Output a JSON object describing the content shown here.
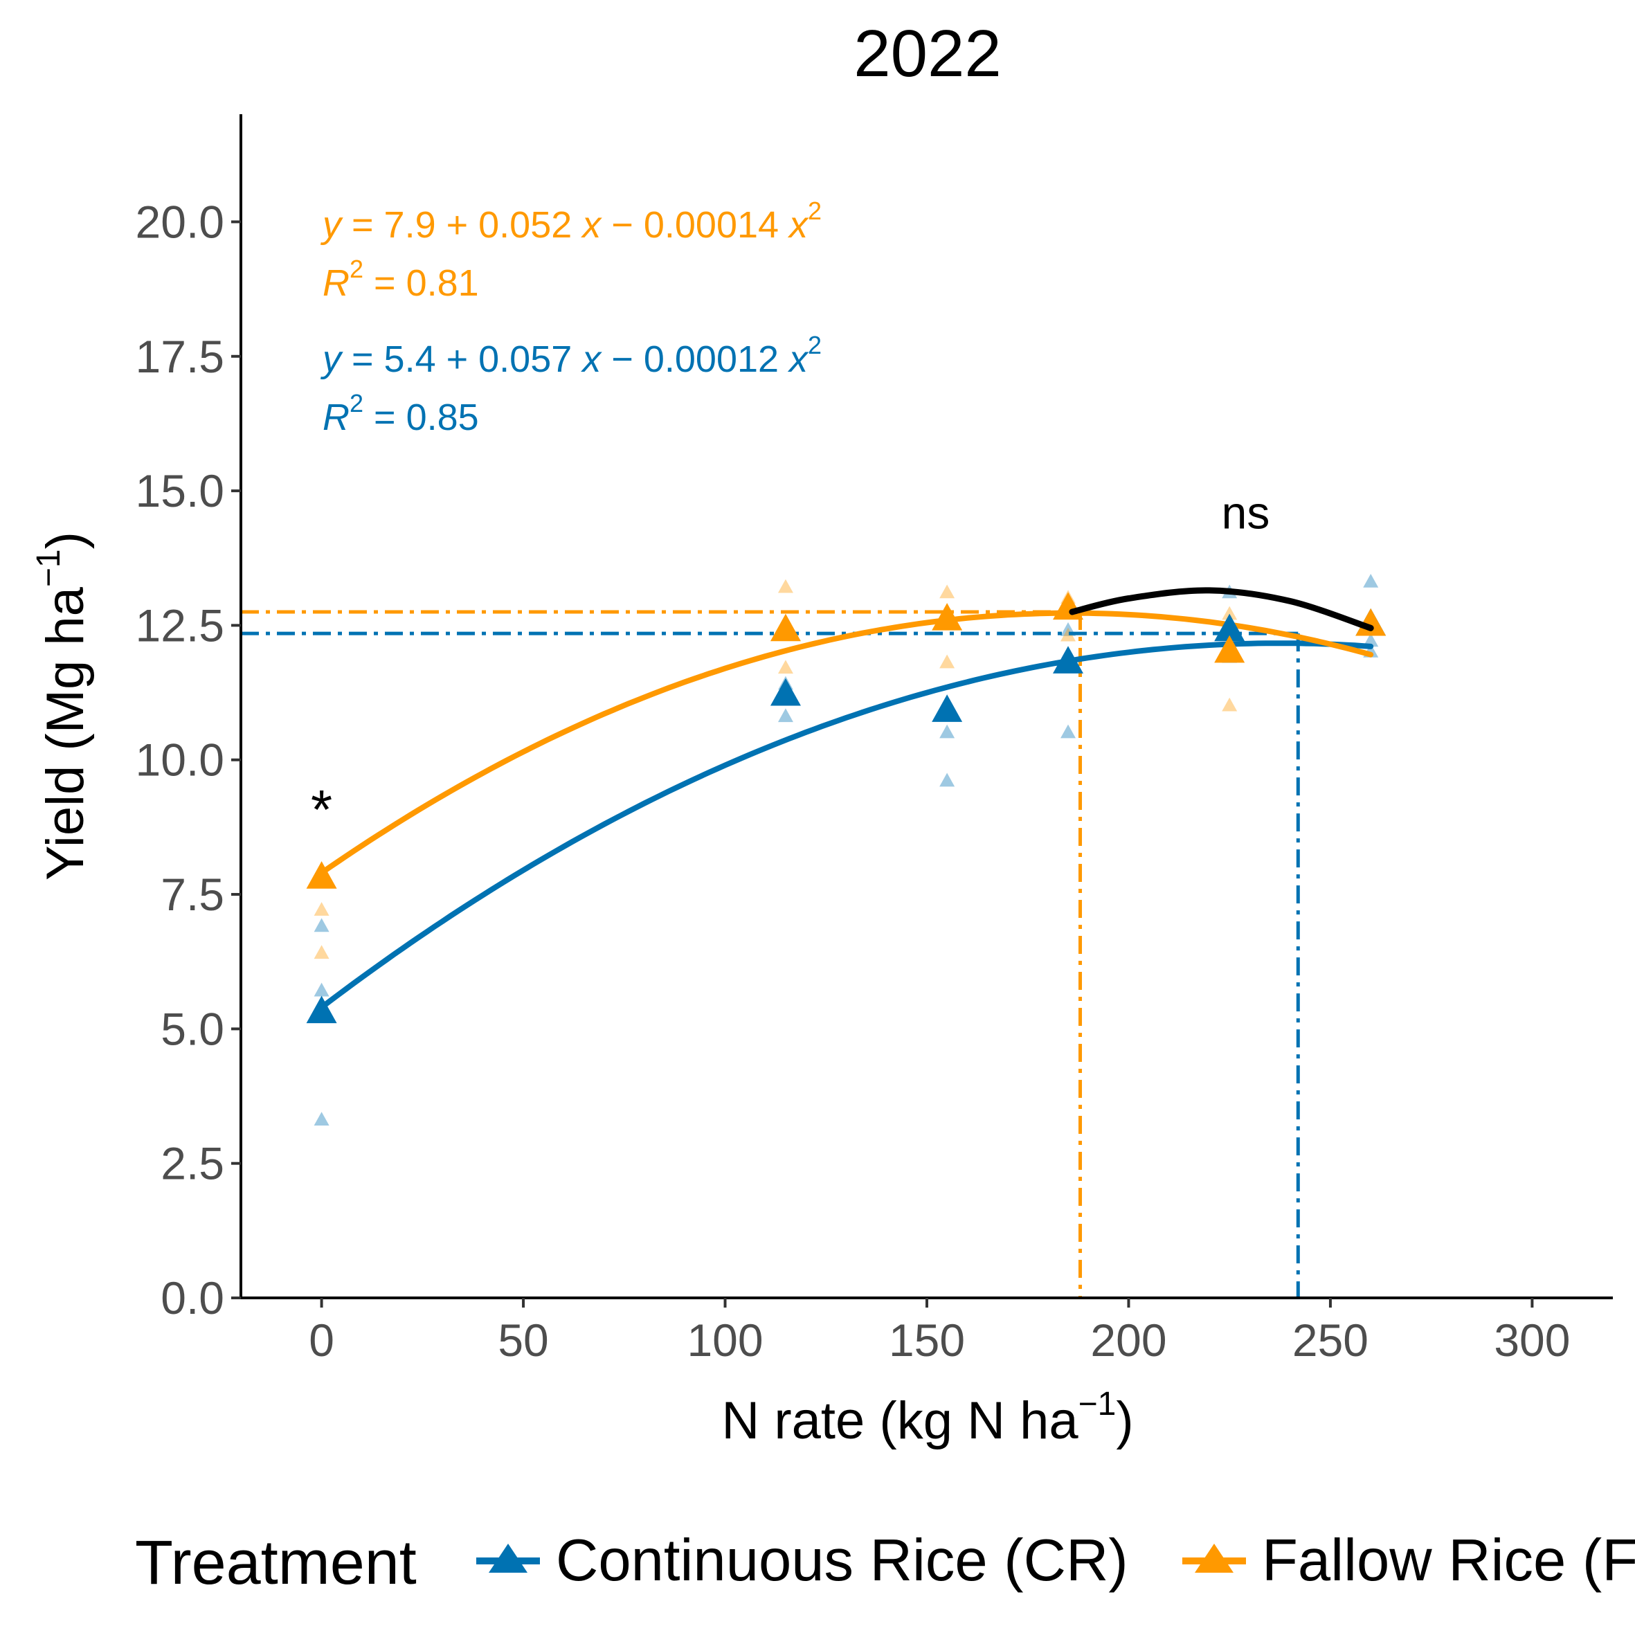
{
  "chart_data": {
    "type": "scatter",
    "title": "2022",
    "xlabel": "N rate (kg N ha",
    "xlabel_sup": "−1",
    "xlabel_end": ")",
    "ylabel": "Yield (Mg ha",
    "ylabel_sup": "−1",
    "ylabel_end": ")",
    "xlim": [
      -20,
      320
    ],
    "ylim": [
      0,
      22
    ],
    "xticks": [
      0,
      50,
      100,
      150,
      200,
      250,
      300
    ],
    "xtick_labels": [
      "0",
      "50",
      "100",
      "150",
      "200",
      "250",
      "300"
    ],
    "yticks": [
      0,
      2.5,
      5,
      7.5,
      10,
      12.5,
      15,
      17.5,
      20
    ],
    "ytick_labels": [
      "0.0",
      "2.5",
      "5.0",
      "7.5",
      "10.0",
      "12.5",
      "15.0",
      "17.5",
      "20.0"
    ],
    "grid": false,
    "legend_position": "bottom",
    "legend_title": "Treatment",
    "series": [
      {
        "name": "Continuous Rice (CR)",
        "color": "#0072b2",
        "marker": "triangle",
        "means": [
          [
            0,
            5.3
          ],
          [
            115,
            11.2
          ],
          [
            155,
            10.9
          ],
          [
            185,
            11.8
          ],
          [
            225,
            12.4
          ],
          [
            260,
            12.5
          ]
        ],
        "reps": [
          [
            0,
            3.3
          ],
          [
            0,
            5.7
          ],
          [
            0,
            6.9
          ],
          [
            115,
            10.8
          ],
          [
            115,
            11.4
          ],
          [
            155,
            9.6
          ],
          [
            155,
            10.5
          ],
          [
            185,
            10.5
          ],
          [
            185,
            12.4
          ],
          [
            225,
            11.9
          ],
          [
            225,
            13.1
          ],
          [
            260,
            12.0
          ],
          [
            260,
            12.2
          ],
          [
            260,
            13.3
          ]
        ],
        "fit": {
          "a": 5.4,
          "b": 0.057,
          "c": -0.00012,
          "x_range": [
            0,
            260
          ]
        },
        "equation": {
          "y": "y",
          "body": " = 5.4 + 0.057 ",
          "x": "x",
          "mid": " − 0.00012 ",
          "x2": "x",
          "sup": "2"
        },
        "r2": {
          "label": "R",
          "sup": "2",
          "value": " = 0.85"
        },
        "optimum": {
          "x": 242,
          "y": 12.35
        }
      },
      {
        "name": "Fallow Rice (FR)",
        "color": "#ff9900",
        "marker": "triangle",
        "means": [
          [
            0,
            7.8
          ],
          [
            115,
            12.4
          ],
          [
            155,
            12.6
          ],
          [
            185,
            12.8
          ],
          [
            225,
            12.0
          ],
          [
            260,
            12.5
          ]
        ],
        "reps": [
          [
            0,
            6.4
          ],
          [
            0,
            7.2
          ],
          [
            115,
            11.7
          ],
          [
            115,
            13.2
          ],
          [
            155,
            11.8
          ],
          [
            155,
            13.1
          ],
          [
            185,
            12.3
          ],
          [
            185,
            13.0
          ],
          [
            225,
            11.0
          ],
          [
            225,
            12.7
          ],
          [
            260,
            12.6
          ]
        ],
        "fit": {
          "a": 7.9,
          "b": 0.052,
          "c": -0.00014,
          "x_range": [
            0,
            260
          ]
        },
        "equation": {
          "y": "y",
          "body": " = 7.9 + 0.052 ",
          "x": "x",
          "mid": " − 0.00014 ",
          "x2": "x",
          "sup": "2"
        },
        "r2": {
          "label": "R",
          "sup": "2",
          "value": " = 0.81"
        },
        "optimum": {
          "x": 188,
          "y": 12.75
        }
      }
    ],
    "annotations": [
      {
        "text": "*",
        "x": 0,
        "y": 9.3
      },
      {
        "text": "ns",
        "x": 229,
        "y": 14.3
      }
    ],
    "black_curve": {
      "x_range": [
        186,
        260
      ],
      "points": [
        [
          186,
          12.75
        ],
        [
          200,
          13.0
        ],
        [
          220,
          13.15
        ],
        [
          240,
          12.95
        ],
        [
          260,
          12.45
        ]
      ]
    }
  }
}
